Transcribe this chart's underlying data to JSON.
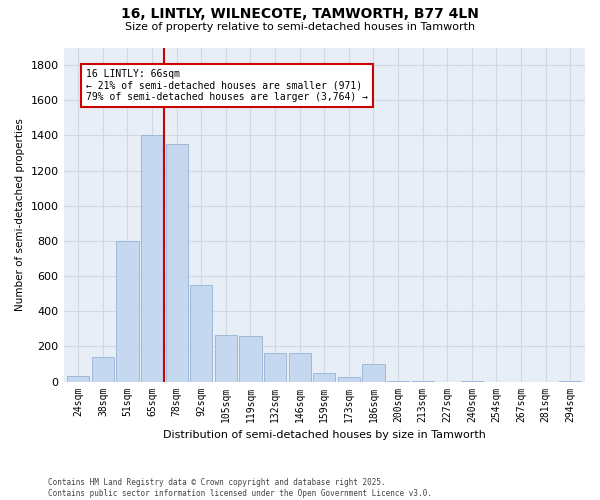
{
  "title1": "16, LINTLY, WILNECOTE, TAMWORTH, B77 4LN",
  "title2": "Size of property relative to semi-detached houses in Tamworth",
  "xlabel": "Distribution of semi-detached houses by size in Tamworth",
  "ylabel": "Number of semi-detached properties",
  "footnote1": "Contains HM Land Registry data © Crown copyright and database right 2025.",
  "footnote2": "Contains public sector information licensed under the Open Government Licence v3.0.",
  "categories": [
    "24sqm",
    "38sqm",
    "51sqm",
    "65sqm",
    "78sqm",
    "92sqm",
    "105sqm",
    "119sqm",
    "132sqm",
    "146sqm",
    "159sqm",
    "173sqm",
    "186sqm",
    "200sqm",
    "213sqm",
    "227sqm",
    "240sqm",
    "254sqm",
    "267sqm",
    "281sqm",
    "294sqm"
  ],
  "values": [
    30,
    140,
    800,
    1400,
    1350,
    550,
    265,
    260,
    160,
    160,
    50,
    25,
    100,
    5,
    5,
    0,
    5,
    0,
    0,
    0,
    5
  ],
  "bar_color": "#c5d8f0",
  "bar_edge_color": "#a0b8d8",
  "grid_color": "#d0d8e4",
  "bg_color": "#e8eef6",
  "vline_x_index": 3,
  "vline_color": "#cc0000",
  "annotation_text": "16 LINTLY: 66sqm\n← 21% of semi-detached houses are smaller (971)\n79% of semi-detached houses are larger (3,764) →",
  "annotation_box_color": "#cc0000",
  "ylim": [
    0,
    1900
  ],
  "yticks": [
    0,
    200,
    400,
    600,
    800,
    1000,
    1200,
    1400,
    1600,
    1800
  ]
}
